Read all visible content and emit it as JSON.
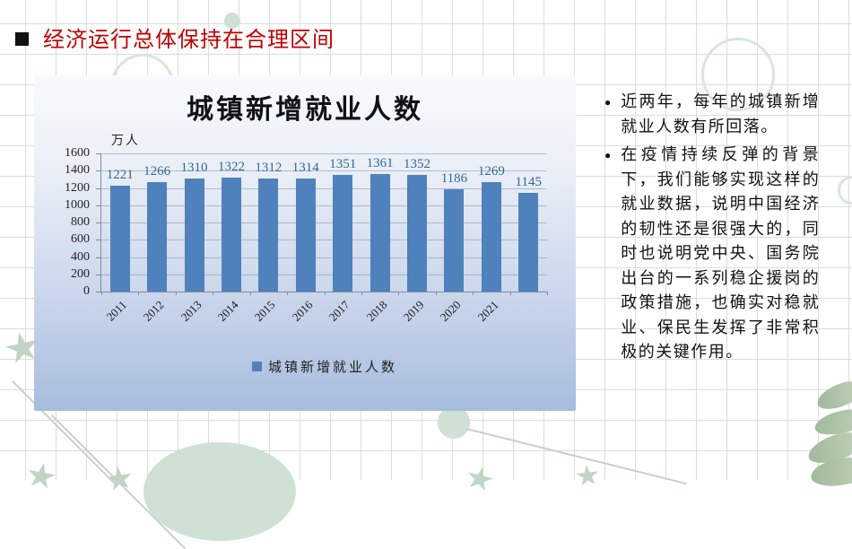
{
  "slide": {
    "title": "经济运行总体保持在合理区间"
  },
  "chart": {
    "title": "城镇新增就业人数",
    "unit_label": "万人",
    "legend_label": "城镇新增就业人数",
    "colors": {
      "bar": "#4f81bd",
      "data_label": "#31689b",
      "title_red": "#c00000"
    }
  },
  "chart_data": {
    "type": "bar",
    "title": "城镇新增就业人数",
    "categories": [
      "2011",
      "2012",
      "2013",
      "2014",
      "2015",
      "2016",
      "2017",
      "2018",
      "2019",
      "2020",
      "2021",
      ""
    ],
    "values": [
      1221,
      1266,
      1310,
      1322,
      1312,
      1314,
      1351,
      1361,
      1352,
      1186,
      1269,
      1145
    ],
    "ylabel": "万人",
    "ylim": [
      0,
      1600
    ],
    "ytick_step": 200,
    "grid": true,
    "legend": [
      "城镇新增就业人数"
    ],
    "legend_position": "bottom"
  },
  "notes": {
    "bullets": [
      "近两年，每年的城镇新增就业人数有所回落。",
      "在疫情持续反弹的背景下，我们能够实现这样的就业数据，说明中国经济的韧性还是很强大的，同时也说明党中央、国务院出台的一系列稳企援岗的政策措施，也确实对稳就业、保民生发挥了非常积极的关键作用。"
    ]
  }
}
